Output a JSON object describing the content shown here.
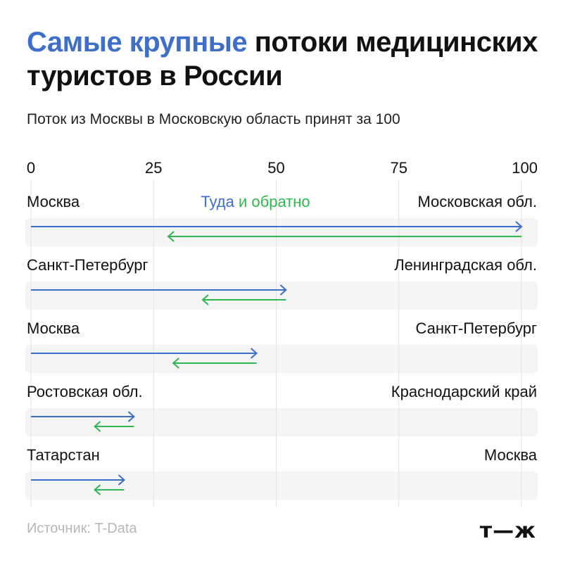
{
  "title": {
    "accent": "Самые крупные",
    "rest": "потоки медицинских туристов в России"
  },
  "subtitle": "Поток из Москвы в Московскую область принят за 100",
  "source": "Источник: T-Data",
  "logo": "т—ж",
  "colors": {
    "forward": "#3d6ec9",
    "backward": "#2fb84f",
    "track": "#f4f4f4",
    "grid": "#e2e2e2"
  },
  "chart_data": {
    "type": "bar",
    "xlim": [
      0,
      100
    ],
    "ticks": [
      "0",
      "25",
      "50",
      "75",
      "100"
    ],
    "legend": {
      "forward_label": "Туда",
      "connector": "и",
      "backward_label": "обратно",
      "placement": "top-center"
    },
    "rows": [
      {
        "from": "Москва",
        "to": "Московская обл.",
        "forward": 100,
        "backward": 72
      },
      {
        "from": "Санкт-Петербург",
        "to": "Ленинградская обл.",
        "forward": 52,
        "backward": 17
      },
      {
        "from": "Москва",
        "to": "Санкт-Петербург",
        "forward": 46,
        "backward": 17
      },
      {
        "from": "Ростовская обл.",
        "to": "Краснодарский край",
        "forward": 21,
        "backward": 8
      },
      {
        "from": "Татарстан",
        "to": "Москва",
        "forward": 19,
        "backward": 6
      }
    ]
  }
}
